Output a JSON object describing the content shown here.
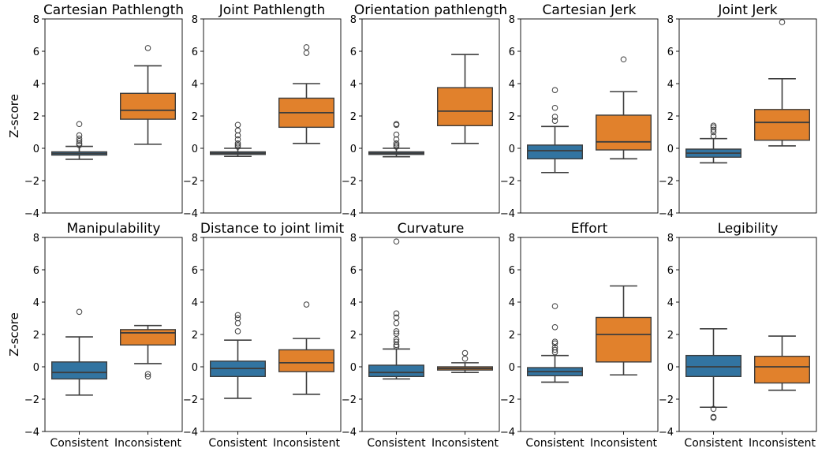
{
  "figure": {
    "ylabel": "Z-score"
  },
  "style": {
    "consistent_color": "#3274a1",
    "inconsistent_color": "#e1812c",
    "median_color": "#3d3d3d",
    "whisker_color": "#3d3d3d"
  },
  "chart_data": [
    {
      "type": "box",
      "title": "Cartesian Pathlength",
      "categories": [
        "Consistent",
        "Inconsistent"
      ],
      "ylim": [
        -4,
        8
      ],
      "yticks": [
        -4,
        -2,
        0,
        2,
        4,
        6,
        8
      ],
      "boxes": [
        {
          "category": "Consistent",
          "q1": -0.42,
          "median": -0.32,
          "q3": -0.22,
          "whisker_low": -0.68,
          "whisker_high": 0.12,
          "outliers": [
            0.2,
            0.3,
            0.45,
            0.6,
            0.8,
            1.5
          ]
        },
        {
          "category": "Inconsistent",
          "q1": 1.8,
          "median": 2.35,
          "q3": 3.4,
          "whisker_low": 0.25,
          "whisker_high": 5.1,
          "outliers": [
            6.2
          ]
        }
      ]
    },
    {
      "type": "box",
      "title": "Joint Pathlength",
      "categories": [
        "Consistent",
        "Inconsistent"
      ],
      "ylim": [
        -4,
        8
      ],
      "yticks": [
        -4,
        -2,
        0,
        2,
        4,
        6,
        8
      ],
      "boxes": [
        {
          "category": "Consistent",
          "q1": -0.38,
          "median": -0.3,
          "q3": -0.22,
          "whisker_low": -0.5,
          "whisker_high": 0.0,
          "outliers": [
            0.1,
            0.2,
            0.3,
            0.55,
            0.8,
            1.1,
            1.45
          ]
        },
        {
          "category": "Inconsistent",
          "q1": 1.3,
          "median": 2.2,
          "q3": 3.1,
          "whisker_low": 0.3,
          "whisker_high": 4.0,
          "outliers": [
            5.9,
            6.25
          ]
        }
      ]
    },
    {
      "type": "box",
      "title": "Orientation pathlength",
      "categories": [
        "Consistent",
        "Inconsistent"
      ],
      "ylim": [
        -4,
        8
      ],
      "yticks": [
        -4,
        -2,
        0,
        2,
        4,
        6,
        8
      ],
      "boxes": [
        {
          "category": "Consistent",
          "q1": -0.38,
          "median": -0.3,
          "q3": -0.22,
          "whisker_low": -0.52,
          "whisker_high": 0.0,
          "outliers": [
            0.1,
            0.2,
            0.3,
            0.55,
            0.85,
            1.45,
            1.5
          ]
        },
        {
          "category": "Inconsistent",
          "q1": 1.4,
          "median": 2.3,
          "q3": 3.75,
          "whisker_low": 0.3,
          "whisker_high": 5.8,
          "outliers": []
        }
      ]
    },
    {
      "type": "box",
      "title": "Cartesian Jerk",
      "categories": [
        "Consistent",
        "Inconsistent"
      ],
      "ylim": [
        -4,
        8
      ],
      "yticks": [
        -4,
        -2,
        0,
        2,
        4,
        6,
        8
      ],
      "boxes": [
        {
          "category": "Consistent",
          "q1": -0.65,
          "median": -0.15,
          "q3": 0.2,
          "whisker_low": -1.5,
          "whisker_high": 1.35,
          "outliers": [
            1.7,
            1.95,
            2.5,
            3.6
          ]
        },
        {
          "category": "Inconsistent",
          "q1": -0.1,
          "median": 0.4,
          "q3": 2.05,
          "whisker_low": -0.65,
          "whisker_high": 3.5,
          "outliers": [
            5.5
          ]
        }
      ]
    },
    {
      "type": "box",
      "title": "Joint Jerk",
      "categories": [
        "Consistent",
        "Inconsistent"
      ],
      "ylim": [
        -4,
        8
      ],
      "yticks": [
        -4,
        -2,
        0,
        2,
        4,
        6,
        8
      ],
      "boxes": [
        {
          "category": "Consistent",
          "q1": -0.55,
          "median": -0.3,
          "q3": -0.05,
          "whisker_low": -0.9,
          "whisker_high": 0.6,
          "outliers": [
            0.75,
            1.0,
            1.15,
            1.3,
            1.4
          ]
        },
        {
          "category": "Inconsistent",
          "q1": 0.5,
          "median": 1.6,
          "q3": 2.4,
          "whisker_low": 0.15,
          "whisker_high": 4.3,
          "outliers": [
            7.8
          ]
        }
      ]
    },
    {
      "type": "box",
      "title": "Manipulability",
      "categories": [
        "Consistent",
        "Inconsistent"
      ],
      "ylim": [
        -4,
        8
      ],
      "yticks": [
        -4,
        -2,
        0,
        2,
        4,
        6,
        8
      ],
      "boxes": [
        {
          "category": "Consistent",
          "q1": -0.75,
          "median": -0.35,
          "q3": 0.3,
          "whisker_low": -1.75,
          "whisker_high": 1.85,
          "outliers": [
            3.4
          ]
        },
        {
          "category": "Inconsistent",
          "q1": 1.35,
          "median": 2.1,
          "q3": 2.3,
          "whisker_low": 0.2,
          "whisker_high": 2.55,
          "outliers": [
            -0.45,
            -0.6
          ]
        }
      ]
    },
    {
      "type": "box",
      "title": "Distance to joint limit",
      "categories": [
        "Consistent",
        "Inconsistent"
      ],
      "ylim": [
        -4,
        8
      ],
      "yticks": [
        -4,
        -2,
        0,
        2,
        4,
        6,
        8
      ],
      "boxes": [
        {
          "category": "Consistent",
          "q1": -0.6,
          "median": -0.1,
          "q3": 0.35,
          "whisker_low": -1.95,
          "whisker_high": 1.65,
          "outliers": [
            2.2,
            2.7,
            3.0,
            3.2
          ]
        },
        {
          "category": "Inconsistent",
          "q1": -0.3,
          "median": 0.25,
          "q3": 1.05,
          "whisker_low": -1.7,
          "whisker_high": 1.75,
          "outliers": [
            3.85
          ]
        }
      ]
    },
    {
      "type": "box",
      "title": "Curvature",
      "categories": [
        "Consistent",
        "Inconsistent"
      ],
      "ylim": [
        -4,
        8
      ],
      "yticks": [
        -4,
        -2,
        0,
        2,
        4,
        6,
        8
      ],
      "boxes": [
        {
          "category": "Consistent",
          "q1": -0.6,
          "median": -0.35,
          "q3": 0.1,
          "whisker_low": -0.75,
          "whisker_high": 1.1,
          "outliers": [
            1.25,
            1.35,
            1.55,
            1.7,
            2.05,
            2.2,
            2.7,
            3.05,
            3.3,
            7.75
          ]
        },
        {
          "category": "Inconsistent",
          "q1": -0.2,
          "median": -0.1,
          "q3": 0.0,
          "whisker_low": -0.35,
          "whisker_high": 0.25,
          "outliers": [
            0.5,
            0.85
          ]
        }
      ]
    },
    {
      "type": "box",
      "title": "Effort",
      "categories": [
        "Consistent",
        "Inconsistent"
      ],
      "ylim": [
        -4,
        8
      ],
      "yticks": [
        -4,
        -2,
        0,
        2,
        4,
        6,
        8
      ],
      "boxes": [
        {
          "category": "Consistent",
          "q1": -0.55,
          "median": -0.3,
          "q3": -0.05,
          "whisker_low": -0.95,
          "whisker_high": 0.7,
          "outliers": [
            0.9,
            1.05,
            1.2,
            1.45,
            1.55,
            2.45,
            3.75
          ]
        },
        {
          "category": "Inconsistent",
          "q1": 0.3,
          "median": 2.0,
          "q3": 3.05,
          "whisker_low": -0.5,
          "whisker_high": 5.0,
          "outliers": []
        }
      ]
    },
    {
      "type": "box",
      "title": "Legibility",
      "categories": [
        "Consistent",
        "Inconsistent"
      ],
      "ylim": [
        -4,
        8
      ],
      "yticks": [
        -4,
        -2,
        0,
        2,
        4,
        6,
        8
      ],
      "boxes": [
        {
          "category": "Consistent",
          "q1": -0.6,
          "median": 0.0,
          "q3": 0.7,
          "whisker_low": -2.5,
          "whisker_high": 2.35,
          "outliers": [
            -2.6,
            -3.1,
            -3.15
          ]
        },
        {
          "category": "Inconsistent",
          "q1": -1.0,
          "median": 0.0,
          "q3": 0.65,
          "whisker_low": -1.45,
          "whisker_high": 1.9,
          "outliers": []
        }
      ]
    }
  ]
}
